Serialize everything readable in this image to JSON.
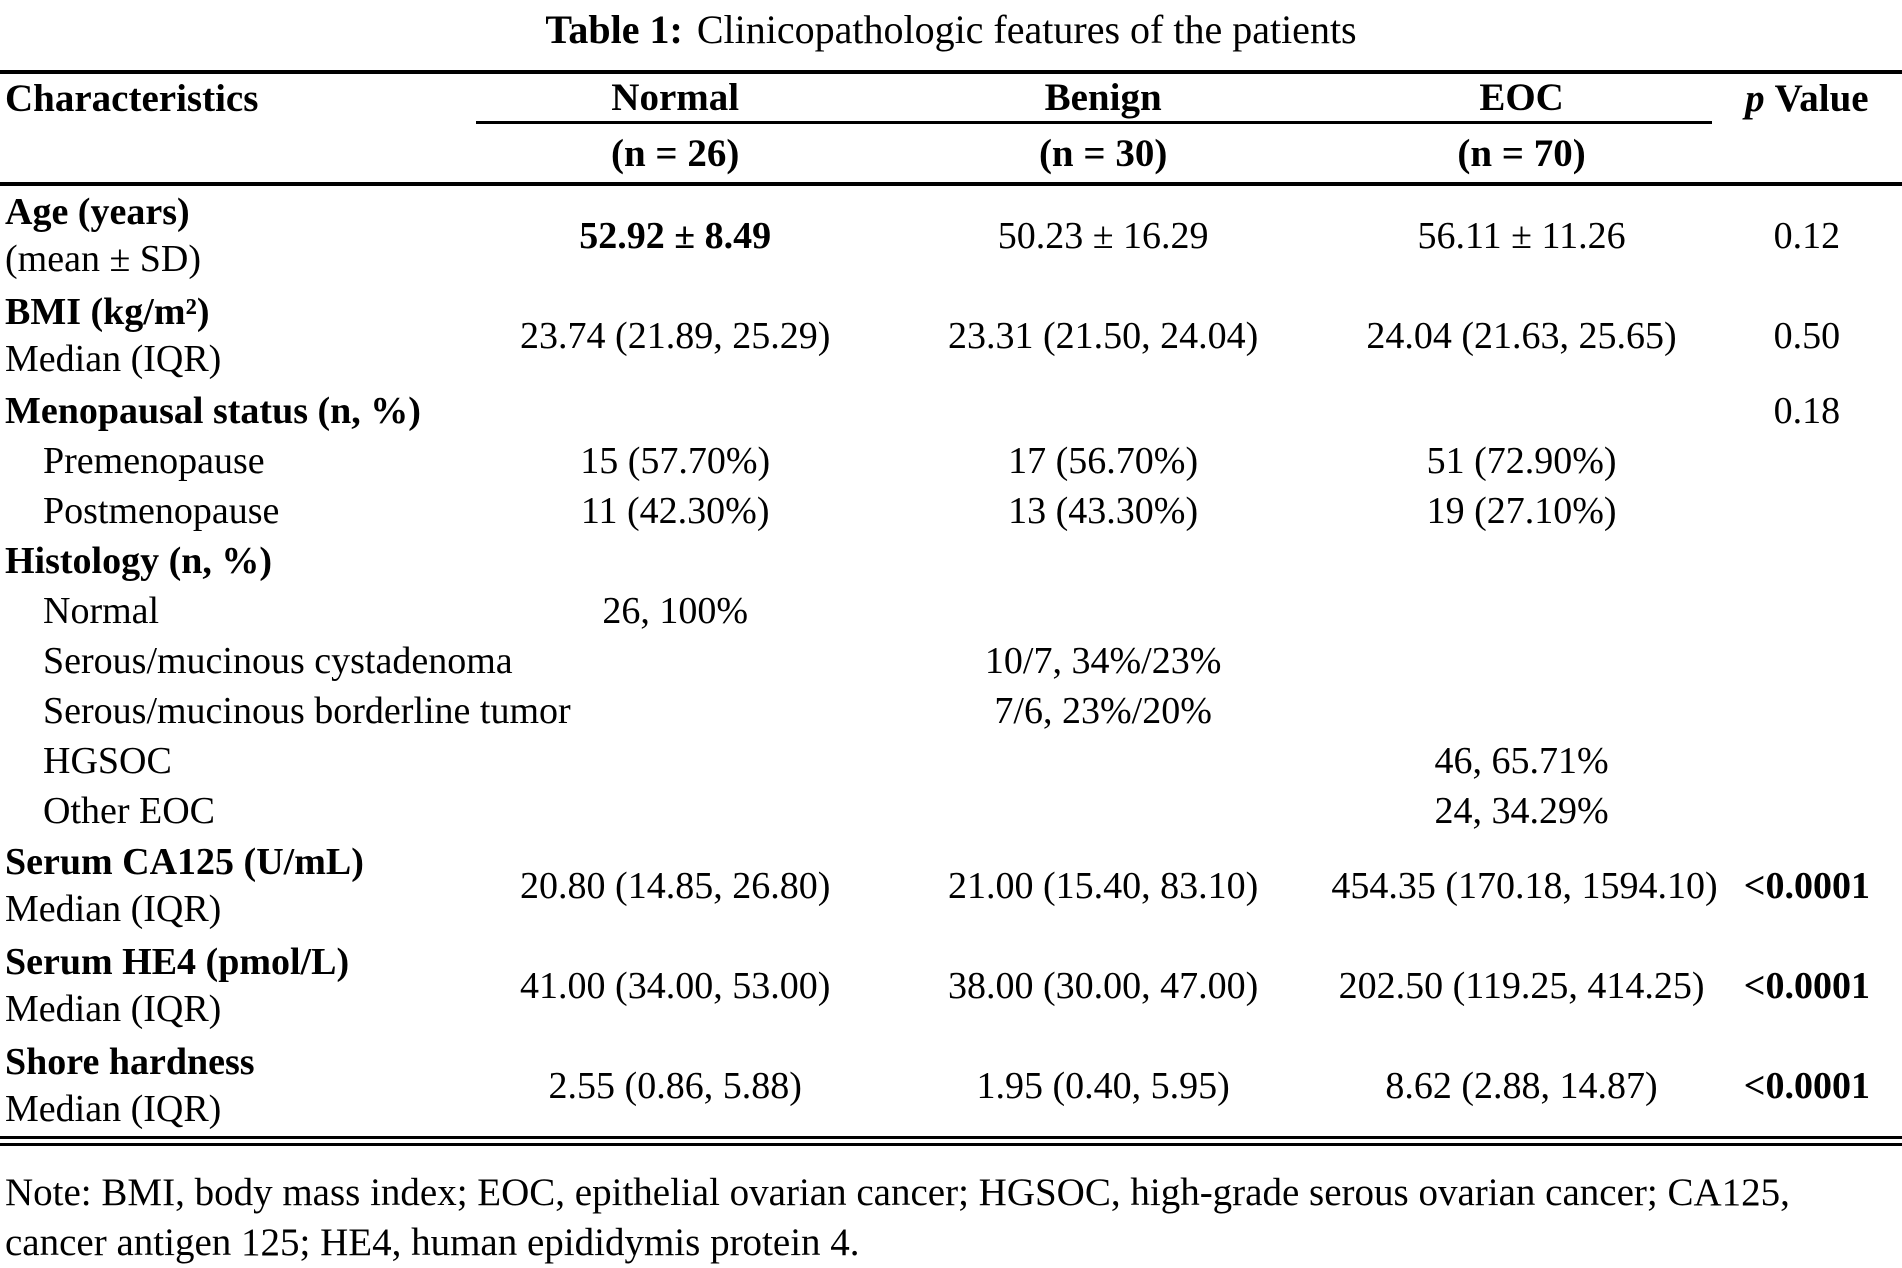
{
  "title": {
    "label": "Table 1:",
    "text": "Clinicopathologic features of the patients"
  },
  "table": {
    "header": {
      "characteristics": "Characteristics",
      "groups": [
        {
          "name": "Normal",
          "n": "(n = 26)"
        },
        {
          "name": "Benign",
          "n": "(n = 30)"
        },
        {
          "name": "EOC",
          "n": "(n = 70)"
        }
      ],
      "p_italic": "p",
      "p_rest": "Value"
    },
    "rows": [
      {
        "label": "Age (years)",
        "sublabel": "(mean ± SD)",
        "values": [
          "52.92 ± 8.49",
          "50.23 ± 16.29",
          "56.11 ± 11.26"
        ],
        "p": "0.12"
      },
      {
        "label": "BMI (kg/m²)",
        "sublabel": "Median (IQR)",
        "values": [
          "23.74 (21.89, 25.29)",
          "23.31 (21.50, 24.04)",
          "24.04 (21.63, 25.65)"
        ],
        "p": "0.50"
      },
      {
        "label": "Menopausal status (n, %)",
        "values": [
          "",
          "",
          ""
        ],
        "p": "0.18"
      },
      {
        "label": "Premenopause",
        "values": [
          "15 (57.70%)",
          "17 (56.70%)",
          "51 (72.90%)"
        ],
        "p": ""
      },
      {
        "label": "Postmenopause",
        "values": [
          "11 (42.30%)",
          "13 (43.30%)",
          "19 (27.10%)"
        ],
        "p": ""
      },
      {
        "label": "Histology (n, %)",
        "values": [
          "",
          "",
          ""
        ],
        "p": ""
      },
      {
        "label": "Normal",
        "values": [
          "26, 100%",
          "",
          ""
        ],
        "p": ""
      },
      {
        "label": "Serous/mucinous cystadenoma",
        "values": [
          "",
          "10/7, 34%/23%",
          ""
        ],
        "p": ""
      },
      {
        "label": "Serous/mucinous borderline tumor",
        "values": [
          "",
          "7/6, 23%/20%",
          ""
        ],
        "p": ""
      },
      {
        "label": "HGSOC",
        "values": [
          "",
          "",
          "46, 65.71%"
        ],
        "p": ""
      },
      {
        "label": "Other EOC",
        "values": [
          "",
          "",
          "24, 34.29%"
        ],
        "p": ""
      },
      {
        "label": "Serum CA125 (U/mL)",
        "sublabel": "Median (IQR)",
        "values": [
          "20.80 (14.85, 26.80)",
          "21.00 (15.40, 83.10)",
          "454.35 (170.18, 1594.10)"
        ],
        "p": "<0.0001"
      },
      {
        "label": "Serum HE4 (pmol/L)",
        "sublabel": "Median (IQR)",
        "values": [
          "41.00 (34.00, 53.00)",
          "38.00 (30.00, 47.00)",
          "202.50 (119.25, 414.25)"
        ],
        "p": "<0.0001"
      },
      {
        "label": "Shore hardness",
        "sublabel": "Median (IQR)",
        "values": [
          "2.55 (0.86, 5.88)",
          "1.95 (0.40, 5.95)",
          "8.62 (2.88, 14.87)"
        ],
        "p": "<0.0001"
      }
    ]
  },
  "note": "Note: BMI, body mass index; EOC, epithelial ovarian cancer; HGSOC, high-grade serous ovarian cancer; CA125, cancer antigen 125; HE4, human epididymis protein 4."
}
